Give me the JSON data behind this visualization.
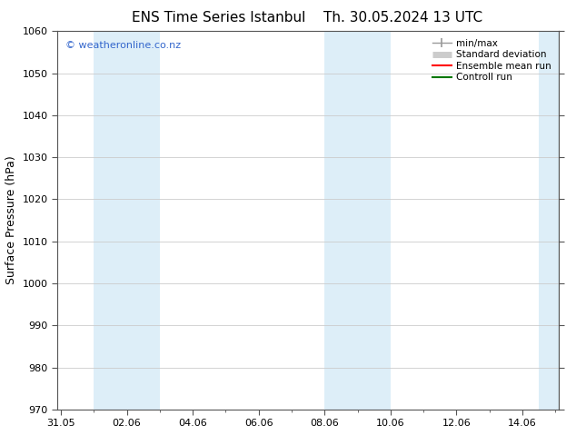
{
  "title_left": "ENS Time Series Istanbul",
  "title_right": "Th. 30.05.2024 13 UTC",
  "ylabel": "Surface Pressure (hPa)",
  "ylim": [
    970,
    1060
  ],
  "yticks": [
    970,
    980,
    990,
    1000,
    1010,
    1020,
    1030,
    1040,
    1050,
    1060
  ],
  "xtick_labels": [
    "31.05",
    "02.06",
    "04.06",
    "06.06",
    "08.06",
    "10.06",
    "12.06",
    "14.06"
  ],
  "xtick_positions": [
    0,
    2,
    4,
    6,
    8,
    10,
    12,
    14
  ],
  "xlim": [
    -0.1,
    15.1
  ],
  "shaded_bands": [
    {
      "x_start": 1.0,
      "x_end": 3.0,
      "color": "#ddeef8"
    },
    {
      "x_start": 8.0,
      "x_end": 10.0,
      "color": "#ddeef8"
    },
    {
      "x_start": 14.5,
      "x_end": 15.1,
      "color": "#ddeef8"
    }
  ],
  "watermark": "© weatheronline.co.nz",
  "watermark_color": "#3366cc",
  "bg_color": "#ffffff",
  "plot_bg_color": "#ffffff",
  "legend_items": [
    {
      "label": "min/max",
      "color": "#999999",
      "lw": 1.0
    },
    {
      "label": "Standard deviation",
      "color": "#cccccc",
      "lw": 5
    },
    {
      "label": "Ensemble mean run",
      "color": "#ff0000",
      "lw": 1.5
    },
    {
      "label": "Controll run",
      "color": "#007700",
      "lw": 1.5
    }
  ],
  "title_fontsize": 11,
  "axis_label_fontsize": 9,
  "tick_fontsize": 8,
  "watermark_fontsize": 8,
  "legend_fontsize": 7.5,
  "spine_color": "#555555"
}
